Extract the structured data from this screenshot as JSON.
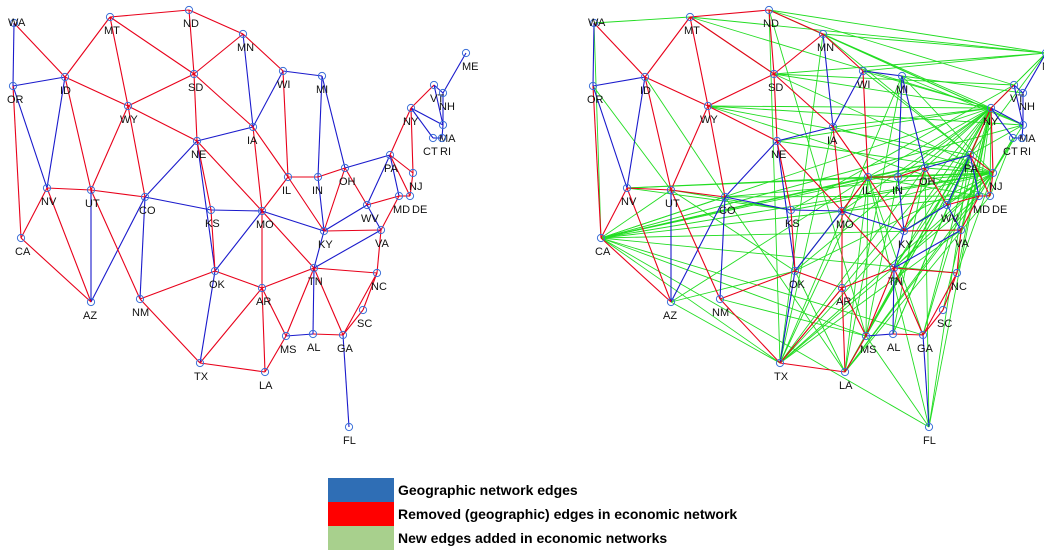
{
  "colors": {
    "geographic": "#1a1acc",
    "removed": "#e8001a",
    "added": "#22dd22",
    "node": "#3a6fd8"
  },
  "maps": [
    {
      "name": "geographic-network-map"
    },
    {
      "name": "economic-network-map"
    }
  ],
  "states": [
    "WA",
    "OR",
    "CA",
    "ID",
    "NV",
    "MT",
    "WY",
    "UT",
    "AZ",
    "CO",
    "NM",
    "ND",
    "SD",
    "NE",
    "KS",
    "OK",
    "TX",
    "MN",
    "IA",
    "MO",
    "AR",
    "LA",
    "WI",
    "IL",
    "MI",
    "IN",
    "OH",
    "KY",
    "TN",
    "MS",
    "AL",
    "GA",
    "FL",
    "SC",
    "NC",
    "VA",
    "WV",
    "PA",
    "NY",
    "NJ",
    "MD",
    "DE",
    "VT",
    "NH",
    "ME",
    "MA",
    "CT",
    "RI"
  ],
  "edges": {
    "geographic_kept": [
      [
        "WA",
        "OR"
      ],
      [
        "OR",
        "ID"
      ],
      [
        "OR",
        "NV"
      ],
      [
        "ID",
        "NV"
      ],
      [
        "UT",
        "AZ"
      ],
      [
        "AZ",
        "CO"
      ],
      [
        "CO",
        "NM"
      ],
      [
        "CO",
        "KS"
      ],
      [
        "CO",
        "NE"
      ],
      [
        "NE",
        "IA"
      ],
      [
        "IA",
        "MN"
      ],
      [
        "IA",
        "WI"
      ],
      [
        "WI",
        "MI"
      ],
      [
        "MI",
        "IN"
      ],
      [
        "IN",
        "KY"
      ],
      [
        "MI",
        "OH"
      ],
      [
        "OH",
        "PA"
      ],
      [
        "PA",
        "WV"
      ],
      [
        "PA",
        "MD"
      ],
      [
        "KS",
        "MO"
      ],
      [
        "MO",
        "KY"
      ],
      [
        "KY",
        "TN"
      ],
      [
        "TN",
        "VA"
      ],
      [
        "MO",
        "OK"
      ],
      [
        "OK",
        "NE"
      ],
      [
        "MS",
        "AL"
      ],
      [
        "AL",
        "TN"
      ],
      [
        "GA",
        "FL"
      ],
      [
        "NY",
        "MA"
      ],
      [
        "NH",
        "ME"
      ],
      [
        "VT",
        "NH"
      ],
      [
        "MA",
        "RI"
      ],
      [
        "CT",
        "RI"
      ],
      [
        "MA",
        "NH"
      ],
      [
        "NY",
        "CT"
      ],
      [
        "VT",
        "MA"
      ],
      [
        "KY",
        "WV"
      ],
      [
        "WV",
        "VA"
      ],
      [
        "TX",
        "OK"
      ]
    ],
    "geographic_removed": [
      [
        "WA",
        "ID"
      ],
      [
        "OR",
        "CA"
      ],
      [
        "CA",
        "NV"
      ],
      [
        "CA",
        "AZ"
      ],
      [
        "ID",
        "MT"
      ],
      [
        "ID",
        "WY"
      ],
      [
        "ID",
        "UT"
      ],
      [
        "NV",
        "UT"
      ],
      [
        "NV",
        "AZ"
      ],
      [
        "MT",
        "WY"
      ],
      [
        "MT",
        "ND"
      ],
      [
        "MT",
        "SD"
      ],
      [
        "WY",
        "SD"
      ],
      [
        "WY",
        "NE"
      ],
      [
        "WY",
        "UT"
      ],
      [
        "WY",
        "CO"
      ],
      [
        "UT",
        "CO"
      ],
      [
        "UT",
        "NM"
      ],
      [
        "NM",
        "OK"
      ],
      [
        "NM",
        "TX"
      ],
      [
        "ND",
        "SD"
      ],
      [
        "ND",
        "MN"
      ],
      [
        "SD",
        "MN"
      ],
      [
        "SD",
        "IA"
      ],
      [
        "SD",
        "NE"
      ],
      [
        "NE",
        "KS"
      ],
      [
        "NE",
        "MO"
      ],
      [
        "KS",
        "OK"
      ],
      [
        "IA",
        "MO"
      ],
      [
        "IA",
        "IL"
      ],
      [
        "WI",
        "IL"
      ],
      [
        "MN",
        "WI"
      ],
      [
        "IL",
        "IN"
      ],
      [
        "IL",
        "MO"
      ],
      [
        "IL",
        "KY"
      ],
      [
        "IN",
        "OH"
      ],
      [
        "OH",
        "KY"
      ],
      [
        "OH",
        "WV"
      ],
      [
        "MO",
        "AR"
      ],
      [
        "MO",
        "TN"
      ],
      [
        "OK",
        "AR"
      ],
      [
        "AR",
        "TX"
      ],
      [
        "AR",
        "LA"
      ],
      [
        "AR",
        "TN"
      ],
      [
        "AR",
        "MS"
      ],
      [
        "LA",
        "MS"
      ],
      [
        "LA",
        "TX"
      ],
      [
        "MS",
        "TN"
      ],
      [
        "TN",
        "GA"
      ],
      [
        "TN",
        "NC"
      ],
      [
        "AL",
        "GA"
      ],
      [
        "GA",
        "SC"
      ],
      [
        "GA",
        "NC"
      ],
      [
        "SC",
        "NC"
      ],
      [
        "NC",
        "VA"
      ],
      [
        "VA",
        "MD"
      ],
      [
        "VA",
        "KY"
      ],
      [
        "MD",
        "DE"
      ],
      [
        "PA",
        "NY"
      ],
      [
        "PA",
        "NJ"
      ],
      [
        "NY",
        "NJ"
      ],
      [
        "PA",
        "DE"
      ],
      [
        "NY",
        "VT"
      ],
      [
        "DE",
        "NJ"
      ],
      [
        "WV",
        "MD"
      ]
    ],
    "economic_new": [
      [
        "WA",
        "MT"
      ],
      [
        "WA",
        "CA"
      ],
      [
        "CA",
        "UT"
      ],
      [
        "CA",
        "CO"
      ],
      [
        "CA",
        "TX"
      ],
      [
        "CA",
        "IL"
      ],
      [
        "CA",
        "NY"
      ],
      [
        "CA",
        "PA"
      ],
      [
        "CA",
        "OH"
      ],
      [
        "CA",
        "MD"
      ],
      [
        "CA",
        "NJ"
      ],
      [
        "CA",
        "GA"
      ],
      [
        "CA",
        "FL"
      ],
      [
        "CA",
        "NC"
      ],
      [
        "CA",
        "MS"
      ],
      [
        "CA",
        "MA"
      ],
      [
        "CA",
        "VA"
      ],
      [
        "MT",
        "ME"
      ],
      [
        "MT",
        "NY"
      ],
      [
        "ND",
        "ME"
      ],
      [
        "ND",
        "TX"
      ],
      [
        "ND",
        "MS"
      ],
      [
        "ND",
        "VT"
      ],
      [
        "ND",
        "MA"
      ],
      [
        "MN",
        "NY"
      ],
      [
        "MN",
        "MA"
      ],
      [
        "MN",
        "ME"
      ],
      [
        "MN",
        "PA"
      ],
      [
        "SD",
        "NY"
      ],
      [
        "SD",
        "VT"
      ],
      [
        "SD",
        "ME"
      ],
      [
        "SD",
        "NJ"
      ],
      [
        "WY",
        "NY"
      ],
      [
        "WY",
        "MA"
      ],
      [
        "WY",
        "PA"
      ],
      [
        "WY",
        "DE"
      ],
      [
        "TX",
        "NY"
      ],
      [
        "TX",
        "PA"
      ],
      [
        "TX",
        "OH"
      ],
      [
        "TX",
        "IL"
      ],
      [
        "TX",
        "MD"
      ],
      [
        "TX",
        "NJ"
      ],
      [
        "TX",
        "MN"
      ],
      [
        "TX",
        "MI"
      ],
      [
        "TX",
        "VA"
      ],
      [
        "TX",
        "IA"
      ],
      [
        "LA",
        "NY"
      ],
      [
        "LA",
        "PA"
      ],
      [
        "LA",
        "IL"
      ],
      [
        "LA",
        "NJ"
      ],
      [
        "LA",
        "MD"
      ],
      [
        "LA",
        "MI"
      ],
      [
        "LA",
        "OK"
      ],
      [
        "LA",
        "CO"
      ],
      [
        "LA",
        "DE"
      ],
      [
        "FL",
        "NY"
      ],
      [
        "FL",
        "PA"
      ],
      [
        "FL",
        "IL"
      ],
      [
        "FL",
        "OH"
      ],
      [
        "FL",
        "MS"
      ],
      [
        "AZ",
        "OK"
      ],
      [
        "AZ",
        "IL"
      ],
      [
        "NM",
        "MS"
      ],
      [
        "OK",
        "IL"
      ],
      [
        "OK",
        "NY"
      ],
      [
        "OK",
        "NJ"
      ],
      [
        "MS",
        "NY"
      ],
      [
        "MS",
        "PA"
      ],
      [
        "MS",
        "IN"
      ],
      [
        "MS",
        "IL"
      ],
      [
        "GA",
        "IL"
      ],
      [
        "GA",
        "NY"
      ],
      [
        "GA",
        "PA"
      ],
      [
        "AL",
        "OH"
      ],
      [
        "AL",
        "PA"
      ],
      [
        "AL",
        "NY"
      ],
      [
        "NV",
        "IL"
      ],
      [
        "NV",
        "NJ"
      ],
      [
        "NV",
        "KS"
      ],
      [
        "CO",
        "NJ"
      ],
      [
        "CO",
        "DE"
      ],
      [
        "KS",
        "NJ"
      ],
      [
        "KS",
        "VT"
      ],
      [
        "NE",
        "NY"
      ],
      [
        "NE",
        "NJ"
      ],
      [
        "MO",
        "NJ"
      ],
      [
        "MO",
        "NY"
      ],
      [
        "IA",
        "NY"
      ],
      [
        "IA",
        "NJ"
      ],
      [
        "WI",
        "NY"
      ],
      [
        "WI",
        "ME"
      ],
      [
        "WI",
        "NJ"
      ],
      [
        "MI",
        "NH"
      ],
      [
        "MI",
        "MA"
      ],
      [
        "MI",
        "NJ"
      ],
      [
        "IL",
        "NY"
      ],
      [
        "IL",
        "NJ"
      ],
      [
        "IL",
        "PA"
      ],
      [
        "IL",
        "MD"
      ],
      [
        "IN",
        "NJ"
      ],
      [
        "IN",
        "NY"
      ],
      [
        "OH",
        "NJ"
      ],
      [
        "OH",
        "NY"
      ],
      [
        "KY",
        "NJ"
      ],
      [
        "KY",
        "NY"
      ],
      [
        "TN",
        "NJ"
      ],
      [
        "TN",
        "NY"
      ],
      [
        "TN",
        "PA"
      ],
      [
        "WV",
        "NY"
      ],
      [
        "WV",
        "NJ"
      ],
      [
        "VA",
        "NY"
      ],
      [
        "NC",
        "NY"
      ],
      [
        "NC",
        "NJ"
      ],
      [
        "SC",
        "NY"
      ],
      [
        "PA",
        "MA"
      ],
      [
        "PA",
        "ME"
      ],
      [
        "NY",
        "DE"
      ],
      [
        "NY",
        "MD"
      ],
      [
        "MD",
        "NJ"
      ],
      [
        "MD",
        "CT"
      ],
      [
        "DE",
        "CT"
      ],
      [
        "NJ",
        "MA"
      ],
      [
        "NJ",
        "CT"
      ],
      [
        "ME",
        "NY"
      ],
      [
        "ME",
        "VT"
      ],
      [
        "MT",
        "SD"
      ],
      [
        "ID",
        "CO"
      ],
      [
        "OR",
        "UT"
      ],
      [
        "UT",
        "KS"
      ],
      [
        "UT",
        "OK"
      ],
      [
        "AZ",
        "TX"
      ]
    ]
  },
  "legend": [
    {
      "label": "Geographic network edges",
      "color": "#2f6eb5"
    },
    {
      "label": "Removed (geographic) edges in economic network",
      "color": "#ff0000"
    },
    {
      "label": "New edges added in economic networks",
      "color": "#a8d08d"
    }
  ]
}
